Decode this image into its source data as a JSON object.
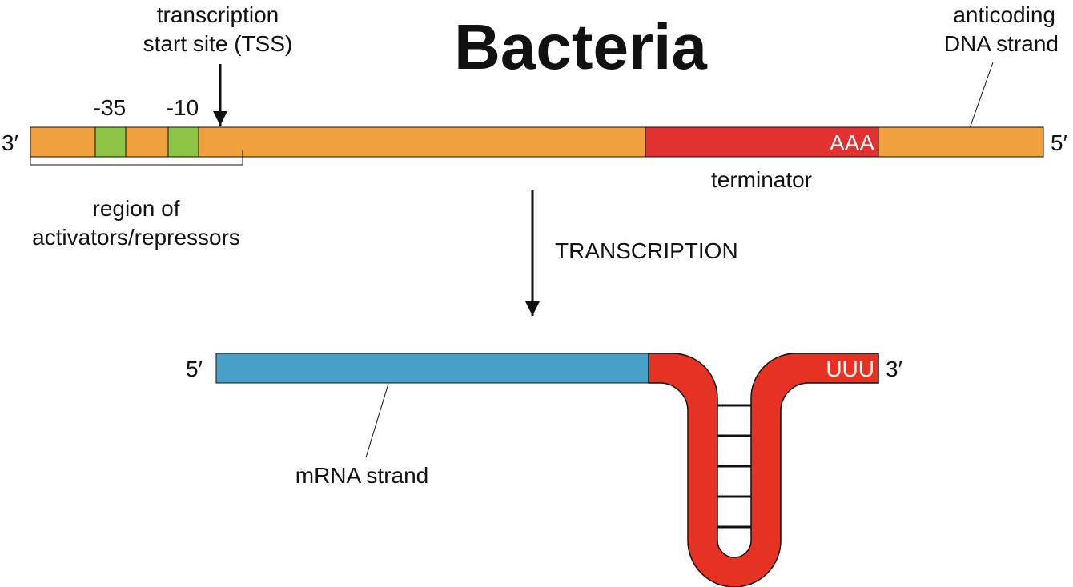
{
  "title": "Bacteria",
  "colors": {
    "dna": "#F0A03C",
    "box": "#8CC446",
    "terminator": "#E13232",
    "mrna": "#46A0C8",
    "hairpin": "#E63223",
    "line": "#111111"
  },
  "dna": {
    "left_end": "3′",
    "right_end": "5′",
    "box_labels": [
      "-35",
      "-10"
    ],
    "tss_label_line1": "transcription",
    "tss_label_line2": "start site (TSS)",
    "terminator_text": "AAA",
    "terminator_label": "terminator",
    "strand_label_line1": "anticoding",
    "strand_label_line2": "DNA strand",
    "region_label_line1": "region of",
    "region_label_line2": "activators/repressors"
  },
  "process_label": "TRANSCRIPTION",
  "mrna": {
    "left_end": "5′",
    "right_end": "3′",
    "tail_text": "UUU",
    "strand_label": "mRNA strand",
    "hairpin_rungs": 5
  }
}
